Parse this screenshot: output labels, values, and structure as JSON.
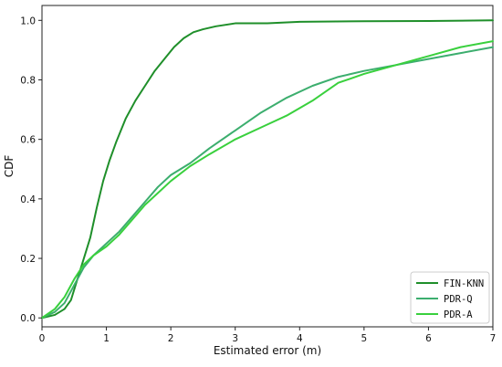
{
  "chart_data": {
    "type": "line",
    "title": "",
    "xlabel": "Estimated error (m)",
    "ylabel": "CDF",
    "xlim": [
      0,
      7
    ],
    "ylim": [
      -0.03,
      1.05
    ],
    "xticks": [
      0,
      1,
      2,
      3,
      4,
      5,
      6,
      7
    ],
    "yticks": [
      0.0,
      0.2,
      0.4,
      0.6,
      0.8,
      1.0
    ],
    "ytick_labels": [
      "0.0",
      "0.2",
      "0.4",
      "0.6",
      "0.8",
      "1.0"
    ],
    "grid": false,
    "legend_position": "lower-right",
    "series": [
      {
        "name": "FIN-KNN",
        "color": "#1f8f2a",
        "x": [
          0,
          0.2,
          0.35,
          0.45,
          0.55,
          0.65,
          0.75,
          0.85,
          0.95,
          1.05,
          1.15,
          1.3,
          1.45,
          1.6,
          1.75,
          1.9,
          2.05,
          2.2,
          2.35,
          2.5,
          2.7,
          3.0,
          3.5,
          4.0,
          5.0,
          6.0,
          7.0
        ],
        "y": [
          0,
          0.01,
          0.03,
          0.06,
          0.13,
          0.2,
          0.27,
          0.37,
          0.46,
          0.53,
          0.59,
          0.67,
          0.73,
          0.78,
          0.83,
          0.87,
          0.91,
          0.94,
          0.96,
          0.97,
          0.98,
          0.99,
          0.99,
          0.995,
          0.997,
          0.998,
          1.0
        ]
      },
      {
        "name": "PDR-Q",
        "color": "#3cae6e",
        "x": [
          0,
          0.2,
          0.35,
          0.5,
          0.65,
          0.8,
          1.0,
          1.2,
          1.4,
          1.6,
          1.8,
          2.0,
          2.3,
          2.6,
          3.0,
          3.4,
          3.8,
          4.2,
          4.6,
          5.0,
          5.5,
          6.0,
          6.5,
          7.0
        ],
        "y": [
          0,
          0.02,
          0.05,
          0.11,
          0.17,
          0.21,
          0.25,
          0.29,
          0.34,
          0.39,
          0.44,
          0.48,
          0.52,
          0.57,
          0.63,
          0.69,
          0.74,
          0.78,
          0.81,
          0.83,
          0.85,
          0.87,
          0.89,
          0.91
        ]
      },
      {
        "name": "PDR-A",
        "color": "#39d03d",
        "x": [
          0,
          0.2,
          0.35,
          0.5,
          0.65,
          0.8,
          1.0,
          1.2,
          1.4,
          1.6,
          1.8,
          2.0,
          2.3,
          2.6,
          3.0,
          3.4,
          3.8,
          4.2,
          4.6,
          5.0,
          5.5,
          6.0,
          6.5,
          7.0
        ],
        "y": [
          0,
          0.03,
          0.07,
          0.13,
          0.18,
          0.21,
          0.24,
          0.28,
          0.33,
          0.38,
          0.42,
          0.46,
          0.51,
          0.55,
          0.6,
          0.64,
          0.68,
          0.73,
          0.79,
          0.82,
          0.85,
          0.88,
          0.91,
          0.93
        ]
      }
    ]
  }
}
